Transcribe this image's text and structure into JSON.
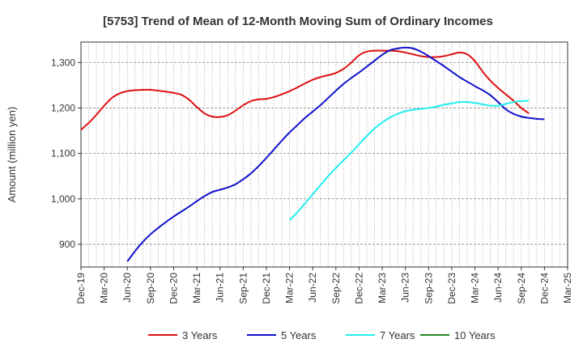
{
  "chart_data": {
    "type": "line",
    "title": "[5753]  Trend of Mean of 12-Month Moving Sum of Ordinary Incomes",
    "xlabel": "",
    "ylabel": "Amount (million yen)",
    "ylim": [
      850,
      1345
    ],
    "yticks": [
      900,
      1000,
      1100,
      1200,
      1300
    ],
    "ytick_labels": [
      "900",
      "1,000",
      "1,100",
      "1,200",
      "1,300"
    ],
    "x_tick_labels": [
      "Dec-19",
      "Mar-20",
      "Jun-20",
      "Sep-20",
      "Dec-20",
      "Mar-21",
      "Jun-21",
      "Sep-21",
      "Dec-21",
      "Mar-22",
      "Jun-22",
      "Sep-22",
      "Dec-22",
      "Mar-23",
      "Jun-23",
      "Sep-23",
      "Dec-23",
      "Mar-24",
      "Jun-24",
      "Sep-24",
      "Dec-24",
      "Mar-25"
    ],
    "x_start": "Dec-19",
    "x_months": 63,
    "grid": true,
    "legend_position": "bottom",
    "series": [
      {
        "name": "3 Years",
        "color": "#dd1111",
        "start_month": 0,
        "values": [
          1152,
          1167,
          1185,
          1205,
          1222,
          1232,
          1237,
          1239,
          1240,
          1240,
          1238,
          1236,
          1233,
          1229,
          1218,
          1202,
          1188,
          1181,
          1180,
          1184,
          1194,
          1206,
          1215,
          1219,
          1220,
          1224,
          1230,
          1237,
          1245,
          1254,
          1262,
          1268,
          1272,
          1277,
          1286,
          1300,
          1316,
          1324,
          1326,
          1326,
          1326,
          1325,
          1322,
          1318,
          1314,
          1312,
          1312,
          1314,
          1318,
          1322,
          1318,
          1303,
          1280,
          1260,
          1244,
          1230,
          1216,
          1200,
          1188
        ]
      },
      {
        "name": "5 Years",
        "color": "#1111cc",
        "start_month": 6,
        "values": [
          862,
          885,
          905,
          922,
          936,
          949,
          961,
          972,
          983,
          995,
          1006,
          1015,
          1020,
          1025,
          1032,
          1043,
          1056,
          1072,
          1090,
          1109,
          1128,
          1146,
          1162,
          1178,
          1192,
          1206,
          1222,
          1238,
          1253,
          1266,
          1278,
          1291,
          1304,
          1317,
          1327,
          1331,
          1333,
          1331,
          1324,
          1314,
          1303,
          1292,
          1280,
          1268,
          1258,
          1248,
          1239,
          1228,
          1213,
          1197,
          1187,
          1181,
          1178,
          1176,
          1175
        ]
      },
      {
        "name": "7 Years",
        "color": "#22eeee",
        "start_month": 27,
        "values": [
          953,
          970,
          990,
          1010,
          1030,
          1050,
          1068,
          1085,
          1102,
          1120,
          1138,
          1155,
          1168,
          1179,
          1187,
          1193,
          1196,
          1198,
          1200,
          1203,
          1207,
          1210,
          1213,
          1213,
          1211,
          1208,
          1205,
          1205,
          1209,
          1213,
          1215,
          1216
        ]
      },
      {
        "name": "10 Years",
        "color": "#228822",
        "start_month": 0,
        "values": []
      }
    ]
  }
}
